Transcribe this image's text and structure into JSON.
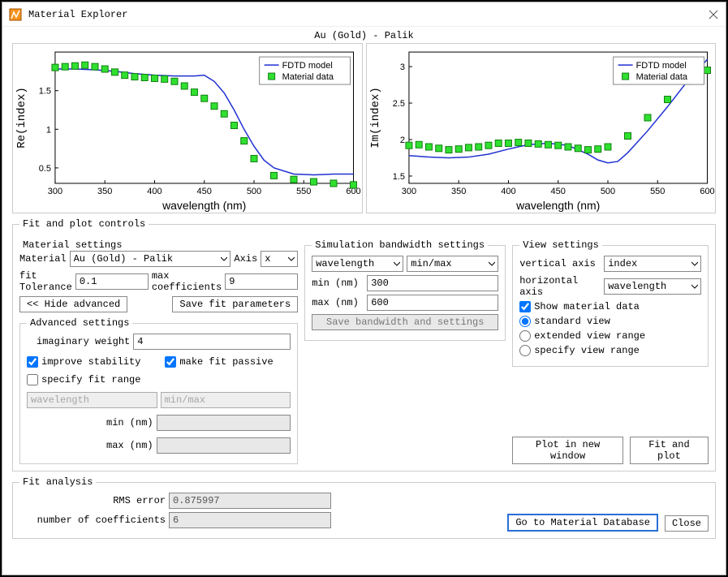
{
  "window": {
    "title": "Material Explorer"
  },
  "plot_header": "Au (Gold) - Palik",
  "plot_left": {
    "type": "line+scatter",
    "xlabel": "wavelength (nm)",
    "ylabel": "Re(index)",
    "xlim": [
      300,
      600
    ],
    "ylim": [
      0.3,
      2.0
    ],
    "xticks": [
      300,
      350,
      400,
      450,
      500,
      550,
      600
    ],
    "yticks": [
      0.5,
      1,
      1.5
    ],
    "background_color": "#ffffff",
    "axis_color": "#000000",
    "model_color": "#2030d0",
    "data_color": "#30e030",
    "data_edge": "#108010",
    "legend": [
      "FDTD model",
      "Material data"
    ],
    "model_points": [
      [
        300,
        1.78
      ],
      [
        320,
        1.78
      ],
      [
        340,
        1.77
      ],
      [
        360,
        1.75
      ],
      [
        380,
        1.72
      ],
      [
        400,
        1.7
      ],
      [
        420,
        1.69
      ],
      [
        440,
        1.69
      ],
      [
        450,
        1.7
      ],
      [
        460,
        1.62
      ],
      [
        470,
        1.47
      ],
      [
        480,
        1.25
      ],
      [
        490,
        1.0
      ],
      [
        500,
        0.78
      ],
      [
        510,
        0.6
      ],
      [
        520,
        0.5
      ],
      [
        540,
        0.42
      ],
      [
        560,
        0.41
      ],
      [
        580,
        0.42
      ],
      [
        600,
        0.42
      ]
    ],
    "data_points": [
      [
        300,
        1.8
      ],
      [
        310,
        1.81
      ],
      [
        320,
        1.82
      ],
      [
        330,
        1.83
      ],
      [
        340,
        1.81
      ],
      [
        350,
        1.78
      ],
      [
        360,
        1.74
      ],
      [
        370,
        1.7
      ],
      [
        380,
        1.68
      ],
      [
        390,
        1.67
      ],
      [
        400,
        1.66
      ],
      [
        410,
        1.65
      ],
      [
        420,
        1.62
      ],
      [
        430,
        1.56
      ],
      [
        440,
        1.48
      ],
      [
        450,
        1.4
      ],
      [
        460,
        1.3
      ],
      [
        470,
        1.2
      ],
      [
        480,
        1.05
      ],
      [
        490,
        0.85
      ],
      [
        500,
        0.62
      ],
      [
        520,
        0.4
      ],
      [
        540,
        0.35
      ],
      [
        560,
        0.32
      ],
      [
        580,
        0.3
      ],
      [
        600,
        0.28
      ]
    ]
  },
  "plot_right": {
    "type": "line+scatter",
    "xlabel": "wavelength (nm)",
    "ylabel": "Im(index)",
    "xlim": [
      300,
      600
    ],
    "ylim": [
      1.4,
      3.2
    ],
    "xticks": [
      300,
      350,
      400,
      450,
      500,
      550,
      600
    ],
    "yticks": [
      1.5,
      2,
      2.5,
      3
    ],
    "background_color": "#ffffff",
    "axis_color": "#000000",
    "model_color": "#2030d0",
    "data_color": "#30e030",
    "data_edge": "#108010",
    "legend": [
      "FDTD model",
      "Material data"
    ],
    "model_points": [
      [
        300,
        1.78
      ],
      [
        320,
        1.76
      ],
      [
        340,
        1.75
      ],
      [
        360,
        1.76
      ],
      [
        380,
        1.8
      ],
      [
        400,
        1.87
      ],
      [
        420,
        1.93
      ],
      [
        440,
        1.95
      ],
      [
        460,
        1.92
      ],
      [
        480,
        1.8
      ],
      [
        490,
        1.72
      ],
      [
        500,
        1.68
      ],
      [
        510,
        1.7
      ],
      [
        520,
        1.82
      ],
      [
        540,
        2.12
      ],
      [
        560,
        2.45
      ],
      [
        580,
        2.8
      ],
      [
        600,
        3.1
      ]
    ],
    "data_points": [
      [
        300,
        1.92
      ],
      [
        310,
        1.93
      ],
      [
        320,
        1.9
      ],
      [
        330,
        1.88
      ],
      [
        340,
        1.86
      ],
      [
        350,
        1.87
      ],
      [
        360,
        1.89
      ],
      [
        370,
        1.9
      ],
      [
        380,
        1.92
      ],
      [
        390,
        1.95
      ],
      [
        400,
        1.95
      ],
      [
        410,
        1.96
      ],
      [
        420,
        1.95
      ],
      [
        430,
        1.94
      ],
      [
        440,
        1.93
      ],
      [
        450,
        1.92
      ],
      [
        460,
        1.9
      ],
      [
        470,
        1.88
      ],
      [
        480,
        1.86
      ],
      [
        490,
        1.87
      ],
      [
        500,
        1.9
      ],
      [
        520,
        2.05
      ],
      [
        540,
        2.3
      ],
      [
        560,
        2.55
      ],
      [
        580,
        2.8
      ],
      [
        600,
        2.95
      ]
    ]
  },
  "controls": {
    "fit_and_plot_title": "Fit and plot controls",
    "material_settings_title": "Material settings",
    "material_label": "Material",
    "material_value": "Au (Gold) - Palik",
    "axis_label": "Axis",
    "axis_value": "x",
    "fit_tolerance_label": "fit Tolerance",
    "fit_tolerance_value": "0.1",
    "max_coefficients_label": "max coefficients",
    "max_coefficients_value": "9",
    "hide_advanced_label": "<< Hide advanced",
    "save_fit_label": "Save fit parameters",
    "advanced_title": "Advanced settings",
    "imaginary_weight_label": "imaginary weight",
    "imaginary_weight_value": "4",
    "improve_stability_label": "improve stability",
    "improve_stability_checked": true,
    "make_fit_passive_label": "make fit passive",
    "make_fit_passive_checked": true,
    "specify_fit_range_label": "specify fit range",
    "specify_fit_range_checked": false,
    "adv_select1": "wavelength",
    "adv_select2": "min/max",
    "adv_min_label": "min (nm)",
    "adv_max_label": "max (nm)"
  },
  "simulation": {
    "title": "Simulation bandwidth settings",
    "select1": "wavelength",
    "select2": "min/max",
    "min_label": "min (nm)",
    "min_value": "300",
    "max_label": "max (nm)",
    "max_value": "600",
    "save_label": "Save bandwidth and settings"
  },
  "view": {
    "title": "View settings",
    "vertical_axis_label": "vertical axis",
    "vertical_axis_value": "index",
    "horizontal_axis_label": "horizontal axis",
    "horizontal_axis_value": "wavelength",
    "show_material_data_label": "Show material data",
    "show_material_data_checked": true,
    "standard_view_label": "standard view",
    "extended_view_label": "extended view range",
    "specify_view_label": "specify view range",
    "view_radio": "standard"
  },
  "buttons": {
    "plot_new_window": "Plot in new window",
    "fit_and_plot": "Fit and plot",
    "go_to_db": "Go to Material Database",
    "close": "Close"
  },
  "fit_analysis": {
    "title": "Fit analysis",
    "rms_label": "RMS error",
    "rms_value": "0.875997",
    "num_coeff_label": "number of coefficients",
    "num_coeff_value": "6"
  }
}
